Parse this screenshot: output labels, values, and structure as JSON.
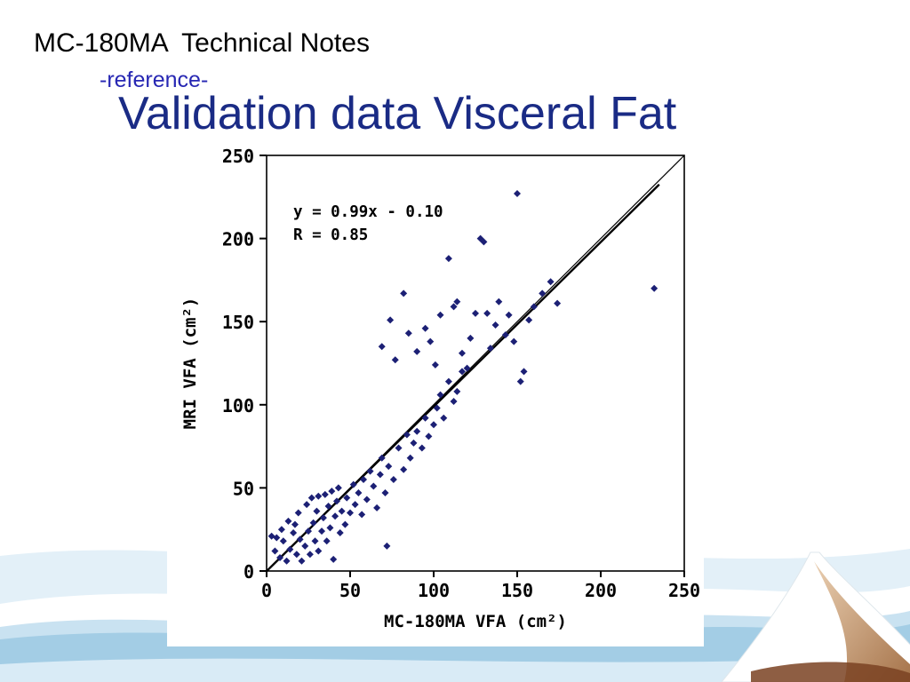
{
  "slide": {
    "header_title": "MC-180MA  Technical Notes",
    "reference_label": "-reference-",
    "main_title": "Validation data Visceral Fat"
  },
  "colors": {
    "reference_text": "#2727b3",
    "main_title_text": "#1a2b85",
    "point_color": "#1c2075",
    "axis_color": "#000000"
  },
  "chart_data": {
    "type": "scatter",
    "title": "",
    "xlabel": "MC-180MA VFA (cm²)",
    "ylabel": "MRI VFA (cm²)",
    "xlim": [
      0,
      250
    ],
    "ylim": [
      0,
      250
    ],
    "xticks": [
      0,
      50,
      100,
      150,
      200,
      250
    ],
    "yticks": [
      0,
      50,
      100,
      150,
      200,
      250
    ],
    "grid": false,
    "legend": "none",
    "marker": "diamond",
    "annotation_line1": "y = 0.99x - 0.10",
    "annotation_line2": "R = 0.85",
    "lines": [
      {
        "name": "identity-line",
        "x1": 0,
        "y1": 0,
        "x2": 250,
        "y2": 250,
        "width": 1.2
      },
      {
        "name": "regression-line",
        "x1": 0,
        "y1": -0.1,
        "x2": 235,
        "y2": 232.5,
        "width": 2.4
      }
    ],
    "points": [
      [
        3,
        21
      ],
      [
        5,
        12
      ],
      [
        6,
        20
      ],
      [
        8,
        8
      ],
      [
        9,
        25
      ],
      [
        10,
        18
      ],
      [
        12,
        6
      ],
      [
        13,
        30
      ],
      [
        14,
        13
      ],
      [
        16,
        23
      ],
      [
        17,
        28
      ],
      [
        18,
        10
      ],
      [
        19,
        35
      ],
      [
        20,
        19
      ],
      [
        21,
        6
      ],
      [
        23,
        15
      ],
      [
        24,
        40
      ],
      [
        25,
        24
      ],
      [
        26,
        10
      ],
      [
        27,
        44
      ],
      [
        28,
        29
      ],
      [
        29,
        18
      ],
      [
        30,
        36
      ],
      [
        31,
        12
      ],
      [
        31,
        45
      ],
      [
        33,
        24
      ],
      [
        34,
        32
      ],
      [
        35,
        46
      ],
      [
        36,
        18
      ],
      [
        37,
        39
      ],
      [
        38,
        26
      ],
      [
        39,
        48
      ],
      [
        40,
        7
      ],
      [
        41,
        33
      ],
      [
        42,
        42
      ],
      [
        43,
        50
      ],
      [
        44,
        23
      ],
      [
        45,
        36
      ],
      [
        47,
        28
      ],
      [
        48,
        44
      ],
      [
        50,
        35
      ],
      [
        52,
        52
      ],
      [
        53,
        40
      ],
      [
        55,
        47
      ],
      [
        57,
        34
      ],
      [
        58,
        55
      ],
      [
        60,
        43
      ],
      [
        62,
        60
      ],
      [
        64,
        51
      ],
      [
        66,
        38
      ],
      [
        68,
        58
      ],
      [
        69,
        68
      ],
      [
        71,
        47
      ],
      [
        72,
        15
      ],
      [
        73,
        63
      ],
      [
        76,
        55
      ],
      [
        79,
        74
      ],
      [
        82,
        61
      ],
      [
        84,
        82
      ],
      [
        86,
        68
      ],
      [
        88,
        77
      ],
      [
        90,
        84
      ],
      [
        93,
        74
      ],
      [
        95,
        92
      ],
      [
        97,
        81
      ],
      [
        100,
        88
      ],
      [
        102,
        98
      ],
      [
        104,
        106
      ],
      [
        106,
        92
      ],
      [
        109,
        114
      ],
      [
        112,
        102
      ],
      [
        114,
        108
      ],
      [
        117,
        120
      ],
      [
        69,
        135
      ],
      [
        74,
        151
      ],
      [
        77,
        127
      ],
      [
        82,
        167
      ],
      [
        85,
        143
      ],
      [
        90,
        132
      ],
      [
        95,
        146
      ],
      [
        98,
        138
      ],
      [
        101,
        124
      ],
      [
        104,
        154
      ],
      [
        109,
        188
      ],
      [
        112,
        159
      ],
      [
        114,
        162
      ],
      [
        117,
        131
      ],
      [
        120,
        122
      ],
      [
        122,
        140
      ],
      [
        125,
        155
      ],
      [
        128,
        200
      ],
      [
        130,
        198
      ],
      [
        132,
        155
      ],
      [
        134,
        134
      ],
      [
        137,
        148
      ],
      [
        139,
        162
      ],
      [
        143,
        142
      ],
      [
        145,
        154
      ],
      [
        148,
        138
      ],
      [
        150,
        227
      ],
      [
        152,
        114
      ],
      [
        154,
        120
      ],
      [
        157,
        151
      ],
      [
        160,
        159
      ],
      [
        165,
        167
      ],
      [
        170,
        174
      ],
      [
        174,
        161
      ],
      [
        232,
        170
      ]
    ]
  }
}
